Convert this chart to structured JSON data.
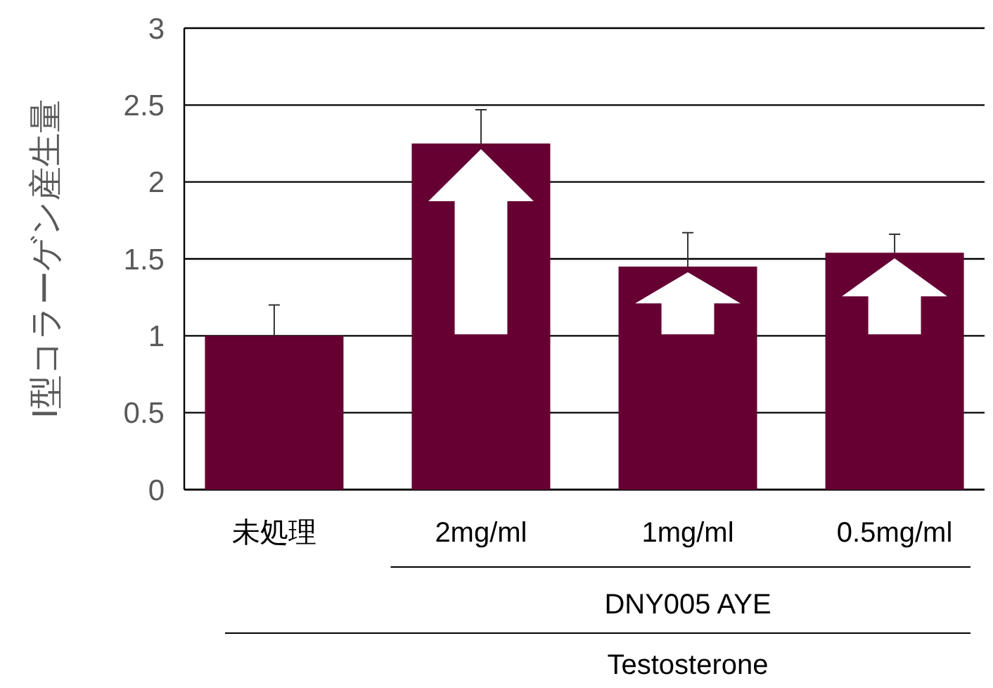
{
  "chart_data": {
    "type": "bar",
    "ylabel": "Ⅰ型コラーゲン産生量",
    "categories": [
      "未処理",
      "2mg/ml",
      "1mg/ml",
      "0.5mg/ml"
    ],
    "values": [
      1.0,
      2.25,
      1.45,
      1.54
    ],
    "errors": [
      [
        1.0,
        1.2
      ],
      [
        2.25,
        2.47
      ],
      [
        1.45,
        1.67
      ],
      [
        1.54,
        1.66
      ]
    ],
    "color": "#660033",
    "ylim": [
      0,
      3
    ],
    "yticks": [
      0,
      0.5,
      1,
      1.5,
      2,
      2.5,
      3
    ],
    "grid": "y",
    "annotations": [
      "DNY005 AYE",
      "Testosterone"
    ]
  }
}
